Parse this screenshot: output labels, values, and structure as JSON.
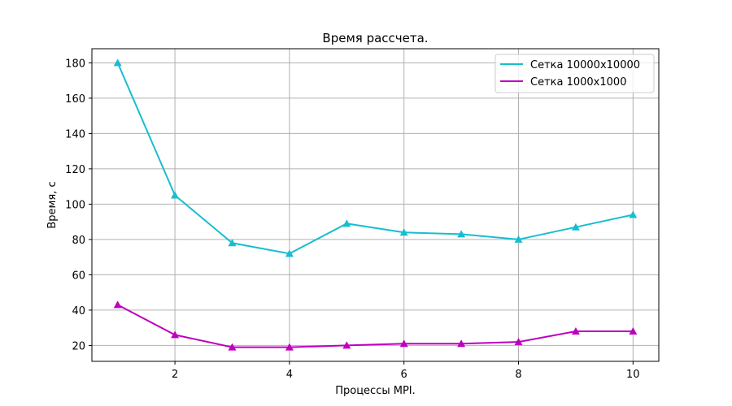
{
  "chart_data": {
    "type": "line",
    "title": "Время рассчета.",
    "xlabel": "Процессы MPI.",
    "ylabel": "Время, с",
    "x": [
      1,
      2,
      3,
      4,
      5,
      6,
      7,
      8,
      9,
      10
    ],
    "xlim": [
      0.55,
      10.45
    ],
    "ylim": [
      11,
      188
    ],
    "xticks": [
      2,
      4,
      6,
      8,
      10
    ],
    "yticks": [
      20,
      40,
      60,
      80,
      100,
      120,
      140,
      160,
      180
    ],
    "grid": true,
    "legend_position": "top-right",
    "marker": "triangle",
    "series": [
      {
        "name": "Сетка 10000x10000",
        "color": "#17becf",
        "values": [
          180,
          105,
          78,
          72,
          89,
          84,
          83,
          80,
          87,
          94
        ]
      },
      {
        "name": "Сетка 1000x1000",
        "color": "#bf00bf",
        "values": [
          43,
          26,
          19,
          19,
          20,
          21,
          21,
          22,
          28,
          28
        ]
      }
    ]
  }
}
